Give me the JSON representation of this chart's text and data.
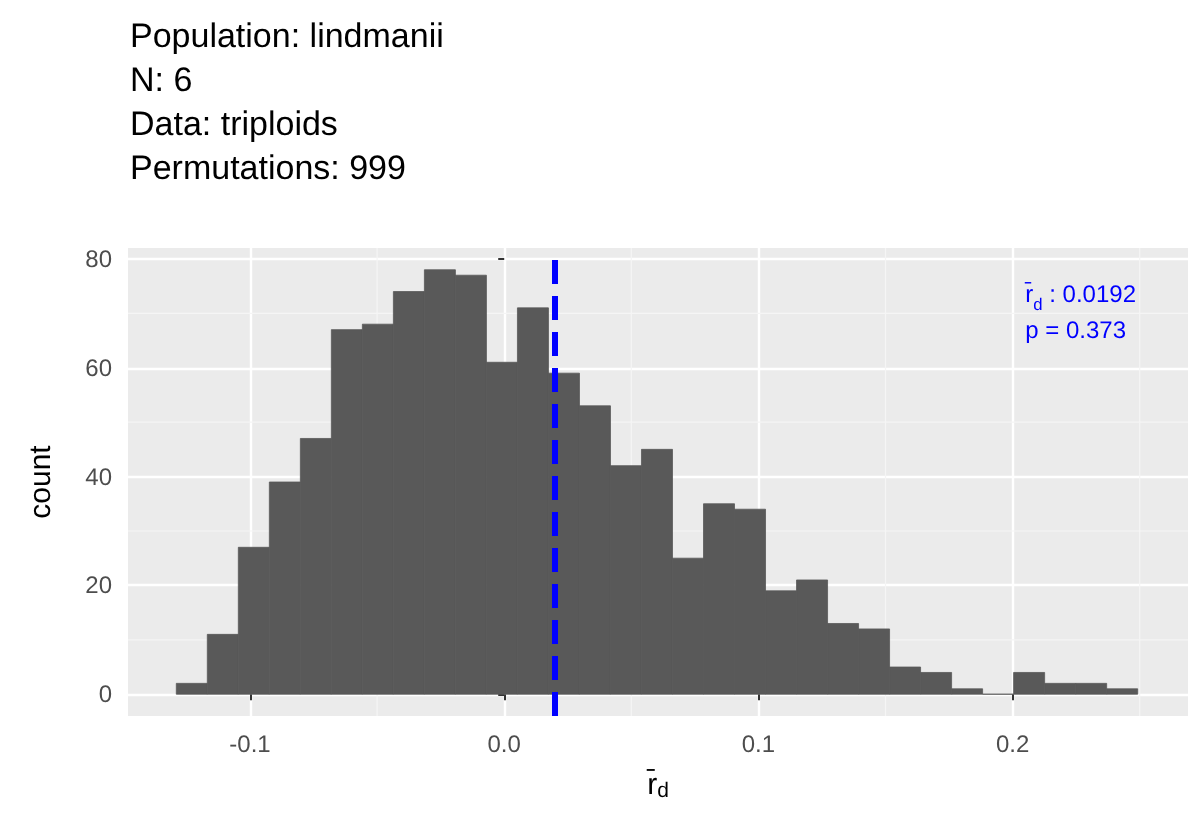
{
  "chart_data": {
    "type": "histogram",
    "title": "Population: lindmanii\nN: 6\nData: triploids\nPermutations: 999",
    "xlabel": "r̄$_{d}$",
    "ylabel": "count",
    "bins": [
      -0.129,
      -0.1168,
      -0.1046,
      -0.0924,
      -0.0802,
      -0.068,
      -0.0558,
      -0.0436,
      -0.0314,
      -0.0192,
      -0.007,
      0.0052,
      0.0174,
      0.0296,
      0.0418,
      0.054,
      0.0662,
      0.0784,
      0.0906,
      0.1028,
      0.115,
      0.1272,
      0.1394,
      0.1516,
      0.1638,
      0.176,
      0.1882,
      0.2004,
      0.2126,
      0.2248,
      0.237,
      0.2492
    ],
    "values": [
      2,
      11,
      27,
      39,
      47,
      67,
      68,
      74,
      78,
      77,
      61,
      71,
      59,
      53,
      42,
      45,
      25,
      35,
      34,
      19,
      21,
      13,
      12,
      5,
      4,
      1,
      0,
      4,
      2,
      2,
      1
    ],
    "color": "#595959",
    "xlim": [
      -0.148,
      0.269
    ],
    "xticks": [
      {
        "value": -0.1,
        "label": "-0.1"
      },
      {
        "value": 0,
        "label": "0.0"
      },
      {
        "value": 0.1,
        "label": "0.1"
      },
      {
        "value": 0.2,
        "label": "0.2"
      }
    ],
    "ylim": [
      -4,
      82
    ],
    "yticks": [
      0,
      20,
      40,
      60,
      80
    ],
    "ref_lines": [
      {
        "axis": "x",
        "value": 0.0192,
        "color": "#0000ff",
        "line_style": "dashed"
      }
    ],
    "annotations": [
      "r̄$_{d}$ : 0.0192",
      "p = 0.373"
    ],
    "grid": true,
    "legend": false
  }
}
